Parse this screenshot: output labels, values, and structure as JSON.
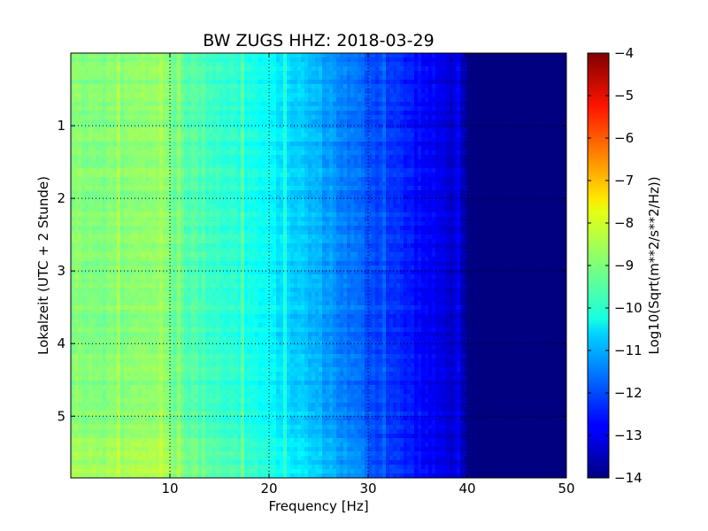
{
  "chart_data": {
    "type": "heatmap",
    "title": "BW ZUGS HHZ: 2018-03-29",
    "xlabel": "Frequency [Hz]",
    "ylabel": "Lokalzeit (UTC + 2 Stunde)",
    "xlim": [
      0,
      50
    ],
    "ylim": [
      5.85,
      0.0
    ],
    "y_inverted": true,
    "x_ticks": [
      10,
      20,
      30,
      40,
      50
    ],
    "y_ticks": [
      1,
      2,
      3,
      4,
      5
    ],
    "grid": true,
    "grid_style": "dotted",
    "colormap": "jet",
    "colorbar": {
      "label": "Log10(Sqrt(m**2/s**2/Hz))",
      "range": [
        -14,
        -4
      ],
      "ticks": [
        -4,
        -5,
        -6,
        -7,
        -8,
        -9,
        -10,
        -11,
        -12,
        -13,
        -14
      ]
    },
    "frequency_profile": {
      "frequency_hz": [
        0,
        2,
        5,
        8,
        9,
        10,
        12,
        15,
        18,
        20,
        22,
        24,
        26,
        28,
        30,
        32,
        34,
        36,
        38,
        39.5,
        40,
        40.5,
        50
      ],
      "log10_amplitude": [
        -8.9,
        -8.9,
        -9.0,
        -8.8,
        -8.7,
        -9.1,
        -9.4,
        -9.7,
        -10.0,
        -10.3,
        -10.6,
        -10.9,
        -11.2,
        -11.6,
        -11.9,
        -12.2,
        -12.5,
        -12.8,
        -13.1,
        -13.3,
        -13.9,
        -14.0,
        -14.0
      ]
    },
    "cutoff_frequency_hz": 40
  }
}
